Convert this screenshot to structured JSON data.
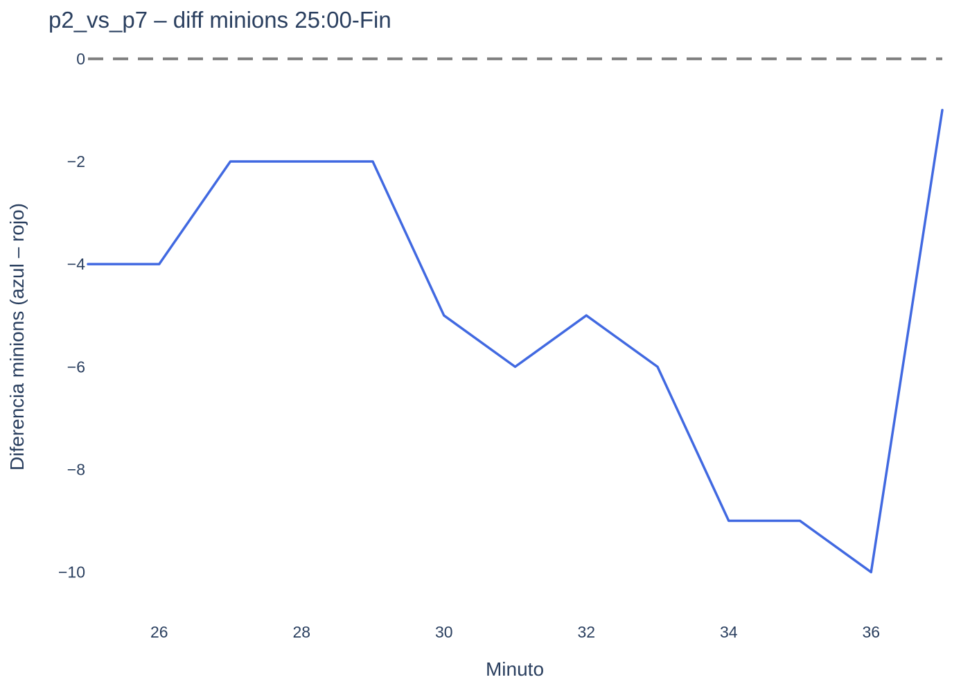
{
  "chart_data": {
    "type": "line",
    "title": "p2_vs_p7 – diff minions 25:00-Fin",
    "xlabel": "Minuto",
    "ylabel": "Diferencia minions (azul – rojo)",
    "xlim": [
      25,
      37
    ],
    "ylim": [
      -10.6,
      0.2
    ],
    "x_ticks": [
      26,
      28,
      30,
      32,
      34,
      36
    ],
    "y_ticks": [
      0,
      -2,
      -4,
      -6,
      -8,
      -10
    ],
    "x_tick_labels": [
      "26",
      "28",
      "30",
      "32",
      "34",
      "36"
    ],
    "y_tick_labels": [
      "0",
      "−2",
      "−4",
      "−6",
      "−8",
      "−10"
    ],
    "grid": false,
    "reference_line": {
      "y": 0,
      "style": "dashed",
      "color": "#808080"
    },
    "series": [
      {
        "color": "#4169e1",
        "x": [
          25,
          26,
          27,
          28,
          29,
          30,
          31,
          32,
          33,
          34,
          35,
          36,
          37
        ],
        "y": [
          -4,
          -4,
          -2,
          -2,
          -2,
          -5,
          -6,
          -5,
          -6,
          -9,
          -9,
          -10,
          -1
        ]
      }
    ]
  }
}
